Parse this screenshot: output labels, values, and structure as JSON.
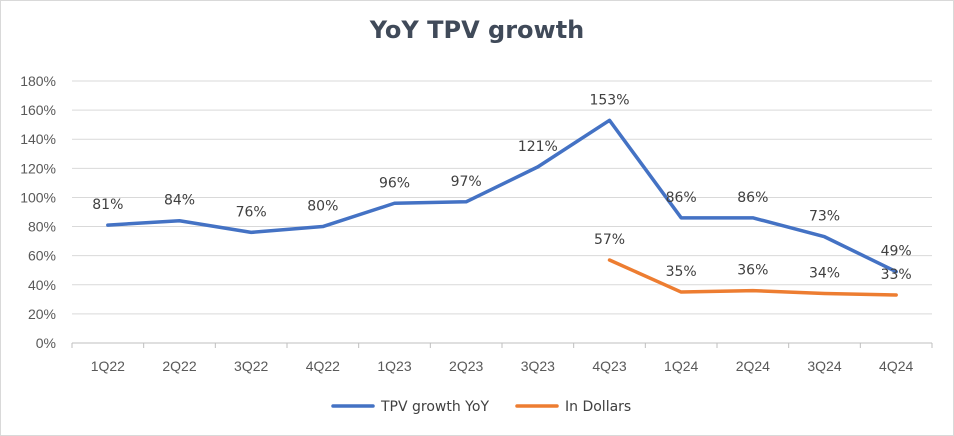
{
  "chart_data": {
    "type": "line",
    "title": "YoY TPV growth",
    "xlabel": "",
    "ylabel": "",
    "categories": [
      "1Q22",
      "2Q22",
      "3Q22",
      "4Q22",
      "1Q23",
      "2Q23",
      "3Q23",
      "4Q23",
      "1Q24",
      "2Q24",
      "3Q24",
      "4Q24"
    ],
    "yticks": [
      "0%",
      "20%",
      "40%",
      "60%",
      "80%",
      "100%",
      "120%",
      "140%",
      "160%",
      "180%"
    ],
    "ylim": [
      0,
      180
    ],
    "grid": true,
    "legend_position": "bottom",
    "series": [
      {
        "name": "TPV growth YoY",
        "color": "#4472C4",
        "values": [
          81,
          84,
          76,
          80,
          96,
          97,
          121,
          153,
          86,
          86,
          73,
          49
        ],
        "labels": [
          "81%",
          "84%",
          "76%",
          "80%",
          "96%",
          "97%",
          "121%",
          "153%",
          "86%",
          "86%",
          "73%",
          "49%"
        ]
      },
      {
        "name": "In Dollars",
        "color": "#ED7D31",
        "values": [
          null,
          null,
          null,
          null,
          null,
          null,
          null,
          57,
          35,
          36,
          34,
          33
        ],
        "labels": [
          null,
          null,
          null,
          null,
          null,
          null,
          null,
          "57%",
          "35%",
          "36%",
          "34%",
          "33%"
        ]
      }
    ]
  }
}
